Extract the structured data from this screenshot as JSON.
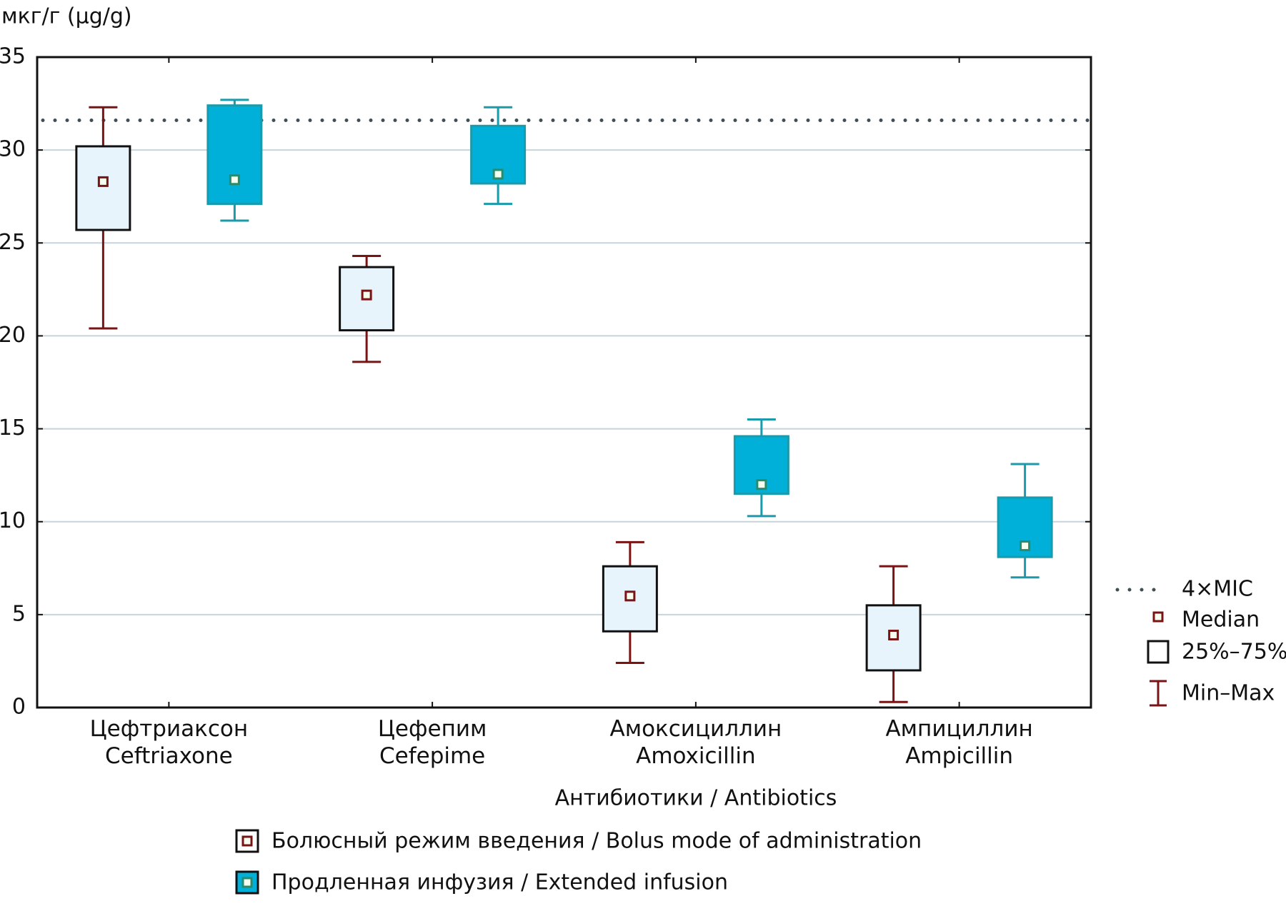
{
  "chart_data": {
    "type": "box",
    "y_label": "мкг/г  (µg/g)",
    "x_label": "Антибиотики / Antibiotics",
    "categories": [
      "Цефтриаксон\nCeftriaxone",
      "Цефепим\nCefepime",
      "Амоксициллин\nAmoxicillin",
      "Ампициллин\nAmpicillin"
    ],
    "series": [
      {
        "name": "Болюсный режим введения / Bolus mode of administration",
        "color": "#7a1414",
        "fill": "#e8f4fc",
        "min": [
          20.4,
          18.6,
          2.4,
          0.3
        ],
        "q1": [
          25.7,
          20.3,
          4.1,
          2.0
        ],
        "median": [
          28.3,
          22.2,
          6.0,
          3.9
        ],
        "q3": [
          30.2,
          23.7,
          7.6,
          5.5
        ],
        "max": [
          32.3,
          24.3,
          8.9,
          7.6
        ]
      },
      {
        "name": "Продленная инфузия / Extended infusion",
        "color": "#1a9aaa",
        "fill": "#00b0d8",
        "min": [
          26.2,
          27.1,
          10.3,
          7.0
        ],
        "q1": [
          27.1,
          28.2,
          11.5,
          8.1
        ],
        "median": [
          28.4,
          28.7,
          12.0,
          8.7
        ],
        "q3": [
          32.4,
          31.3,
          14.6,
          11.3
        ],
        "max": [
          32.7,
          32.3,
          15.5,
          13.1
        ]
      }
    ],
    "reference_line": {
      "name": "4×MIC",
      "value": 31.6,
      "color": "#3f4f55"
    },
    "legend_items": [
      "Median",
      "25%–75%",
      "Min–Max"
    ],
    "ylim": [
      0,
      35
    ],
    "yticks": [
      0,
      5,
      10,
      15,
      20,
      25,
      30,
      35
    ],
    "grid": true
  }
}
